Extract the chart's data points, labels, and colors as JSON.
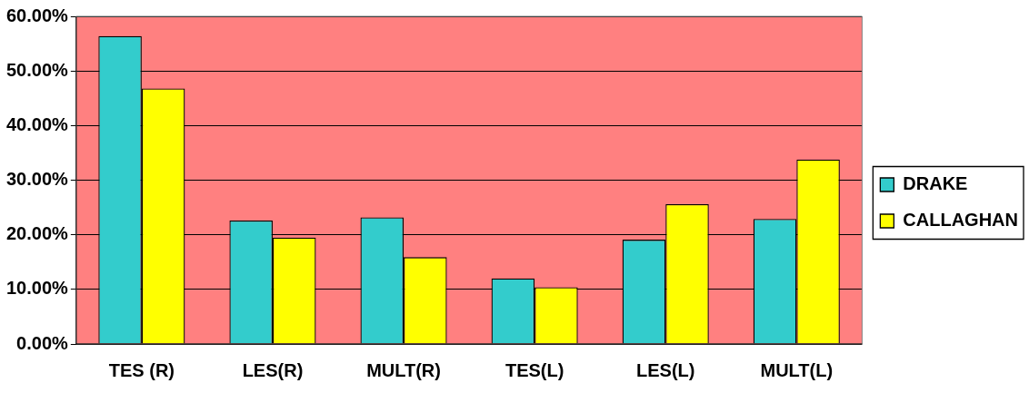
{
  "chart_data": {
    "type": "bar",
    "categories": [
      "TES (R)",
      "LES(R)",
      "MULT(R)",
      "TES(L)",
      "LES(L)",
      "MULT(L)"
    ],
    "series": [
      {
        "name": "DRAKE",
        "color": "#33cccc",
        "values": [
          56.4,
          22.6,
          23.2,
          12.0,
          19.1,
          22.9
        ]
      },
      {
        "name": "CALLAGHAN",
        "color": "#ffff00",
        "values": [
          46.8,
          19.5,
          15.9,
          10.4,
          25.6,
          33.8
        ]
      }
    ],
    "ylim": [
      0,
      60
    ],
    "yticks": [
      {
        "value": 0,
        "label": "0.00%"
      },
      {
        "value": 10,
        "label": "10.00%"
      },
      {
        "value": 20,
        "label": "20.00%"
      },
      {
        "value": 30,
        "label": "30.00%"
      },
      {
        "value": 40,
        "label": "40.00%"
      },
      {
        "value": 50,
        "label": "50.00%"
      },
      {
        "value": 60,
        "label": "60.00%"
      }
    ],
    "grid": "y",
    "legend": "right"
  }
}
